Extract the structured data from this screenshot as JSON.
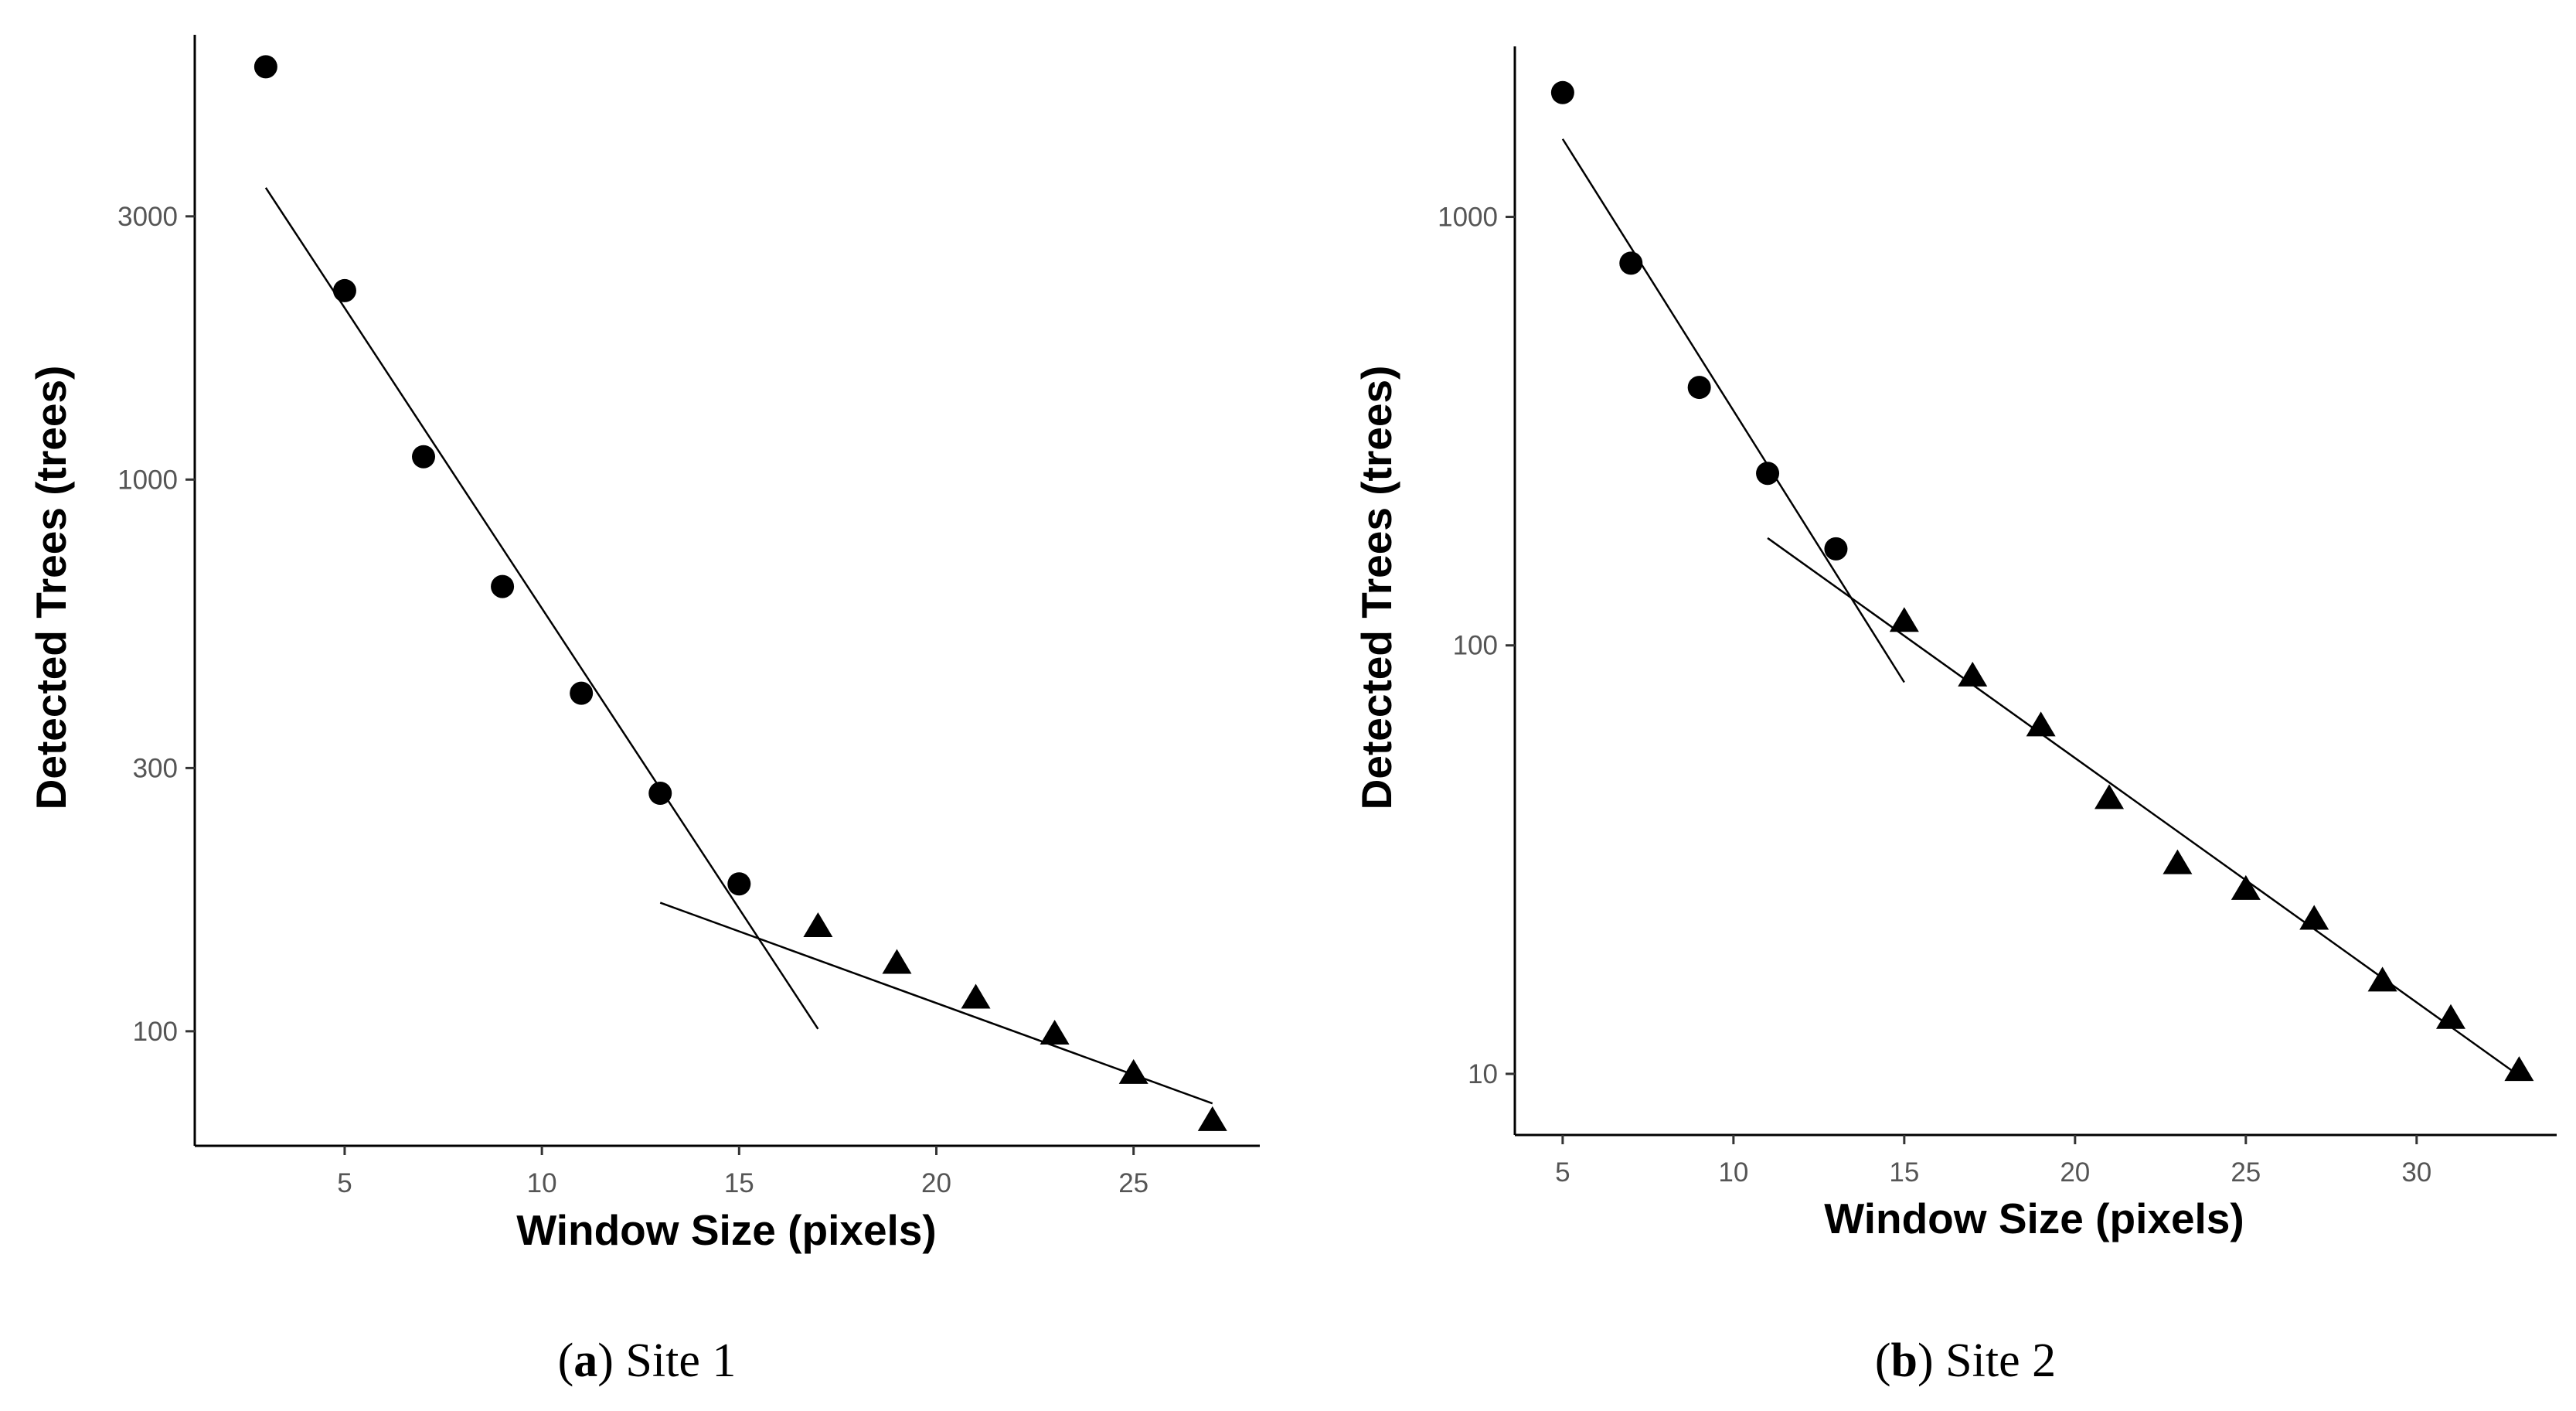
{
  "chart_data": [
    {
      "type": "scatter",
      "panel": "a",
      "caption_letter": "a",
      "caption_text": "Site 1",
      "xlabel": "Window Size (pixels)",
      "ylabel": "Detected Trees (trees)",
      "y_scale": "log",
      "xlim": [
        1.2,
        28.2
      ],
      "ylim": [
        62,
        6400
      ],
      "x_ticks": [
        5,
        10,
        15,
        20,
        25
      ],
      "y_ticks": [
        100,
        300,
        1000,
        3000
      ],
      "grid": false,
      "series": [
        {
          "name": "circles",
          "marker": "circle",
          "points": [
            {
              "x": 3,
              "y": 5600
            },
            {
              "x": 5,
              "y": 2200
            },
            {
              "x": 7,
              "y": 1100
            },
            {
              "x": 9,
              "y": 640
            },
            {
              "x": 11,
              "y": 410
            },
            {
              "x": 13,
              "y": 270
            },
            {
              "x": 15,
              "y": 185
            }
          ]
        },
        {
          "name": "triangles",
          "marker": "triangle",
          "points": [
            {
              "x": 17,
              "y": 155
            },
            {
              "x": 19,
              "y": 133
            },
            {
              "x": 21,
              "y": 115
            },
            {
              "x": 23,
              "y": 99
            },
            {
              "x": 25,
              "y": 84
            },
            {
              "x": 27,
              "y": 69
            }
          ]
        }
      ],
      "fit_lines": [
        {
          "x": [
            3,
            17
          ],
          "y": [
            3380,
            101
          ]
        },
        {
          "x": [
            13,
            27
          ],
          "y": [
            171,
            74
          ]
        }
      ]
    },
    {
      "type": "scatter",
      "panel": "b",
      "caption_letter": "b",
      "caption_text": "Site 2",
      "xlabel": "Window Size (pixels)",
      "ylabel": "Detected Trees (trees)",
      "y_scale": "log",
      "xlim": [
        3.6,
        34.1
      ],
      "ylim": [
        7.2,
        2500
      ],
      "x_ticks": [
        5,
        10,
        15,
        20,
        25,
        30
      ],
      "y_ticks": [
        10,
        100,
        1000
      ],
      "grid": false,
      "series": [
        {
          "name": "circles",
          "marker": "circle",
          "points": [
            {
              "x": 5,
              "y": 1950
            },
            {
              "x": 7,
              "y": 780
            },
            {
              "x": 9,
              "y": 400
            },
            {
              "x": 11,
              "y": 252
            },
            {
              "x": 13,
              "y": 168
            }
          ]
        },
        {
          "name": "triangles",
          "marker": "triangle",
          "points": [
            {
              "x": 15,
              "y": 114
            },
            {
              "x": 17,
              "y": 85
            },
            {
              "x": 19,
              "y": 65
            },
            {
              "x": 21,
              "y": 44
            },
            {
              "x": 23,
              "y": 31
            },
            {
              "x": 25,
              "y": 27
            },
            {
              "x": 27,
              "y": 23
            },
            {
              "x": 29,
              "y": 16.5
            },
            {
              "x": 31,
              "y": 13.5
            },
            {
              "x": 33,
              "y": 10.2
            }
          ]
        }
      ],
      "fit_lines": [
        {
          "x": [
            5,
            15
          ],
          "y": [
            1520,
            82
          ]
        },
        {
          "x": [
            11,
            33
          ],
          "y": [
            178,
            9.9
          ]
        }
      ]
    }
  ]
}
